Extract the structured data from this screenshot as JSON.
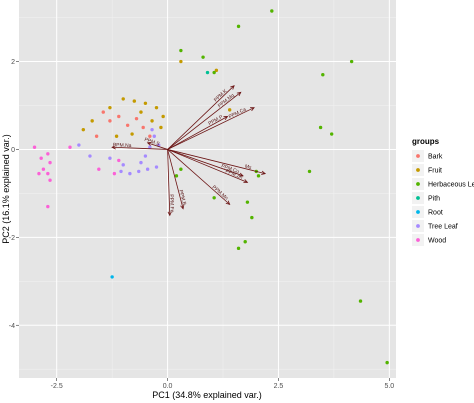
{
  "chart_data": {
    "type": "scatter",
    "xlabel": "PC1 (34.8% explained var.)",
    "ylabel": "PC2 (16.1% explained var.)",
    "xlim": [
      -3.35,
      5.15
    ],
    "ylim": [
      -5.2,
      3.4
    ],
    "x_ticks": [
      -2.5,
      0.0,
      2.5,
      5.0
    ],
    "x_tick_labels": [
      "-2.5",
      "0.0",
      "2.5",
      "5.0"
    ],
    "y_ticks": [
      -4,
      -2,
      0,
      2
    ],
    "y_tick_labels": [
      "-4",
      "-2",
      "0",
      "2"
    ],
    "grid": true,
    "legend": {
      "title": "groups",
      "placement": "right",
      "entries": [
        {
          "name": "Bark",
          "color": "#F8766D"
        },
        {
          "name": "Fruit",
          "color": "#C49A00"
        },
        {
          "name": "Herbaceous Leaf",
          "color": "#53B400"
        },
        {
          "name": "Pith",
          "color": "#00C094"
        },
        {
          "name": "Root",
          "color": "#00B6EB"
        },
        {
          "name": "Tree Leaf",
          "color": "#A58AFF"
        },
        {
          "name": "Wood",
          "color": "#FB61D7"
        }
      ]
    },
    "series": [
      {
        "name": "Bark",
        "points": [
          [
            -1.45,
            0.85
          ],
          [
            -1.3,
            0.65
          ],
          [
            -1.1,
            0.75
          ],
          [
            -0.9,
            0.55
          ],
          [
            -0.7,
            0.7
          ],
          [
            -0.55,
            0.5
          ],
          [
            -1.6,
            0.3
          ],
          [
            -0.4,
            0.3
          ]
        ]
      },
      {
        "name": "Fruit",
        "points": [
          [
            -1.7,
            0.65
          ],
          [
            -1.9,
            0.45
          ],
          [
            -1.3,
            0.95
          ],
          [
            -1.0,
            1.15
          ],
          [
            -0.75,
            1.1
          ],
          [
            -0.5,
            1.05
          ],
          [
            -0.25,
            0.95
          ],
          [
            -0.1,
            0.75
          ],
          [
            -0.35,
            0.65
          ],
          [
            -0.6,
            0.85
          ],
          [
            -0.15,
            0.5
          ],
          [
            -1.15,
            0.3
          ],
          [
            -0.8,
            0.35
          ],
          [
            1.1,
            1.8
          ],
          [
            1.4,
            0.9
          ],
          [
            0.3,
            2.0
          ]
        ]
      },
      {
        "name": "Herbaceous Leaf",
        "points": [
          [
            2.35,
            3.15
          ],
          [
            1.6,
            2.8
          ],
          [
            0.3,
            2.25
          ],
          [
            0.8,
            2.1
          ],
          [
            1.05,
            1.75
          ],
          [
            4.15,
            2.0
          ],
          [
            3.5,
            1.7
          ],
          [
            3.45,
            0.5
          ],
          [
            3.7,
            0.35
          ],
          [
            2.0,
            -0.5
          ],
          [
            2.05,
            -0.6
          ],
          [
            3.2,
            -0.5
          ],
          [
            1.8,
            -1.2
          ],
          [
            1.9,
            -1.55
          ],
          [
            1.75,
            -2.1
          ],
          [
            1.6,
            -2.25
          ],
          [
            1.05,
            -1.1
          ],
          [
            0.3,
            -0.45
          ],
          [
            0.2,
            -0.6
          ],
          [
            4.35,
            -3.45
          ],
          [
            4.95,
            -4.85
          ]
        ]
      },
      {
        "name": "Pith",
        "points": [
          [
            0.9,
            1.75
          ]
        ]
      },
      {
        "name": "Root",
        "points": [
          [
            -1.25,
            -2.9
          ]
        ]
      },
      {
        "name": "Tree Leaf",
        "points": [
          [
            -0.35,
            0.45
          ],
          [
            -0.3,
            0.3
          ],
          [
            -0.2,
            0.1
          ],
          [
            -0.4,
            0.05
          ],
          [
            -0.5,
            -0.15
          ],
          [
            -0.6,
            -0.3
          ],
          [
            -0.45,
            -0.45
          ],
          [
            -0.25,
            -0.4
          ],
          [
            -0.65,
            -0.5
          ],
          [
            -1.0,
            -0.35
          ],
          [
            -1.3,
            -0.2
          ],
          [
            -1.05,
            -0.5
          ],
          [
            -0.85,
            -0.55
          ],
          [
            -2.0,
            0.1
          ],
          [
            -1.75,
            -0.15
          ]
        ]
      },
      {
        "name": "Wood",
        "points": [
          [
            -3.0,
            0.05
          ],
          [
            -2.85,
            -0.2
          ],
          [
            -2.7,
            -0.1
          ],
          [
            -2.65,
            -0.3
          ],
          [
            -2.8,
            -0.45
          ],
          [
            -2.9,
            -0.55
          ],
          [
            -2.7,
            -0.55
          ],
          [
            -2.65,
            -0.7
          ],
          [
            -2.7,
            -1.3
          ],
          [
            -1.1,
            -0.25
          ],
          [
            -1.2,
            -0.55
          ],
          [
            -1.55,
            -0.45
          ],
          [
            -2.2,
            0.05
          ]
        ]
      }
    ],
    "vectors": [
      {
        "label": "PPM.K",
        "x": 1.5,
        "y": 1.45
      },
      {
        "label": "PPM.Mg",
        "x": 1.65,
        "y": 1.3
      },
      {
        "label": "PPM.Ca",
        "x": 1.95,
        "y": 0.95
      },
      {
        "label": "PPM.Na",
        "x": -1.25,
        "y": 0.05
      },
      {
        "label": "PPM.S",
        "x": -0.45,
        "y": 0.15
      },
      {
        "label": "PPM.P",
        "x": 1.35,
        "y": 0.75
      },
      {
        "label": "PPM.Cu",
        "x": 1.7,
        "y": -0.6
      },
      {
        "label": "PPM.Zn",
        "x": 1.8,
        "y": -0.75
      },
      {
        "label": "PPM.Mn",
        "x": 1.4,
        "y": -1.25
      },
      {
        "label": "Ms",
        "x": 2.2,
        "y": -0.55
      },
      {
        "label": "PPM.Fe",
        "x": 0.05,
        "y": -1.5
      },
      {
        "label": "PPM.B",
        "x": 0.35,
        "y": -1.35
      }
    ]
  }
}
